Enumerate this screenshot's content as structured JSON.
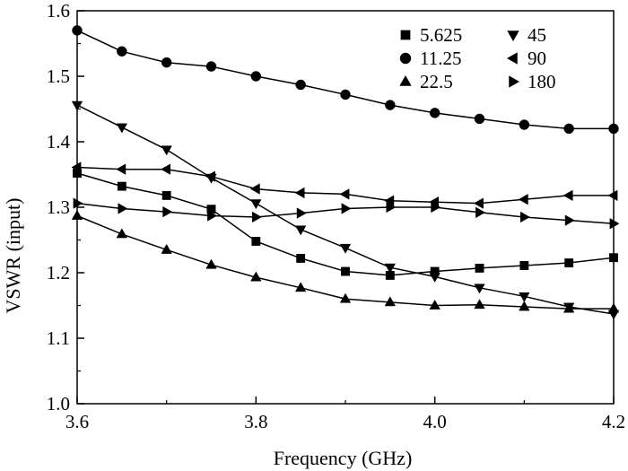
{
  "chart_data": {
    "type": "line",
    "title": "",
    "xlabel": "Frequency (GHz)",
    "ylabel": "VSWR (input)",
    "xlim": [
      3.6,
      4.2
    ],
    "ylim": [
      1.0,
      1.6
    ],
    "x_ticks": [
      {
        "value": 3.6,
        "label": "3.6"
      },
      {
        "value": 3.8,
        "label": "3.8"
      },
      {
        "value": 4.0,
        "label": "4.0"
      },
      {
        "value": 4.2,
        "label": "4.2"
      }
    ],
    "y_ticks": [
      {
        "value": 1.0,
        "label": "1.0"
      },
      {
        "value": 1.1,
        "label": "1.1"
      },
      {
        "value": 1.2,
        "label": "1.2"
      },
      {
        "value": 1.3,
        "label": "1.3"
      },
      {
        "value": 1.4,
        "label": "1.4"
      },
      {
        "value": 1.5,
        "label": "1.5"
      },
      {
        "value": 1.6,
        "label": "1.6"
      }
    ],
    "grid": false,
    "legend_position": "top-right",
    "x": [
      3.6,
      3.65,
      3.7,
      3.75,
      3.8,
      3.85,
      3.9,
      3.95,
      4.0,
      4.05,
      4.1,
      4.15,
      4.2
    ],
    "series": [
      {
        "name": "5.625",
        "marker": "square",
        "values": [
          1.352,
          1.332,
          1.318,
          1.297,
          1.248,
          1.222,
          1.202,
          1.196,
          1.202,
          1.207,
          1.211,
          1.215,
          1.223
        ]
      },
      {
        "name": "11.25",
        "marker": "circle",
        "values": [
          1.57,
          1.538,
          1.521,
          1.515,
          1.5,
          1.487,
          1.472,
          1.456,
          1.444,
          1.435,
          1.426,
          1.42,
          1.42
        ]
      },
      {
        "name": "22.5",
        "marker": "triangle-up",
        "values": [
          1.287,
          1.259,
          1.235,
          1.212,
          1.193,
          1.177,
          1.16,
          1.155,
          1.15,
          1.151,
          1.148,
          1.145,
          1.145
        ]
      },
      {
        "name": "45",
        "marker": "triangle-down",
        "values": [
          1.456,
          1.422,
          1.388,
          1.345,
          1.306,
          1.266,
          1.238,
          1.208,
          1.194,
          1.177,
          1.164,
          1.148,
          1.137
        ]
      },
      {
        "name": "90",
        "marker": "triangle-left",
        "values": [
          1.361,
          1.358,
          1.358,
          1.347,
          1.328,
          1.322,
          1.32,
          1.31,
          1.308,
          1.306,
          1.312,
          1.318,
          1.318
        ]
      },
      {
        "name": "180",
        "marker": "triangle-right",
        "values": [
          1.306,
          1.298,
          1.293,
          1.287,
          1.285,
          1.291,
          1.298,
          1.3,
          1.3,
          1.292,
          1.285,
          1.28,
          1.275
        ]
      }
    ]
  }
}
